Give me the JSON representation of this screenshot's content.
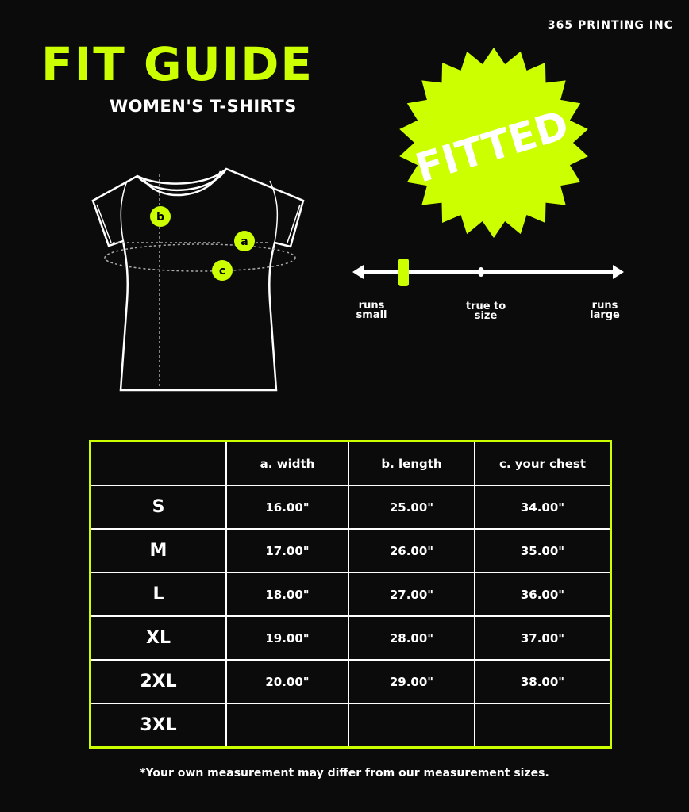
{
  "brand": "365 PRINTING INC",
  "title": "FIT GUIDE",
  "subtitle": "WOMEN'S T-SHIRTS",
  "badge": "FITTED",
  "diagram_markers": [
    "a",
    "b",
    "c"
  ],
  "fit_scale": {
    "labels": [
      "runs small",
      "true to size",
      "runs large"
    ],
    "position": "between runs small and true to size, near runs small"
  },
  "table": {
    "headers": [
      "",
      "a. width",
      "b. length",
      "c. your chest"
    ],
    "rows": [
      [
        "S",
        "16.00\"",
        "25.00\"",
        "34.00\""
      ],
      [
        "M",
        "17.00\"",
        "26.00\"",
        "35.00\""
      ],
      [
        "L",
        "18.00\"",
        "27.00\"",
        "36.00\""
      ],
      [
        "XL",
        "19.00\"",
        "28.00\"",
        "37.00\""
      ],
      [
        "2XL",
        "20.00\"",
        "29.00\"",
        "38.00\""
      ],
      [
        "3XL",
        "",
        "",
        ""
      ]
    ]
  },
  "note": "*Your own measurement may differ from our measurement sizes.",
  "colors": {
    "accent": "#ccff00",
    "background": "#0b0b0b",
    "text": "#ffffff"
  }
}
